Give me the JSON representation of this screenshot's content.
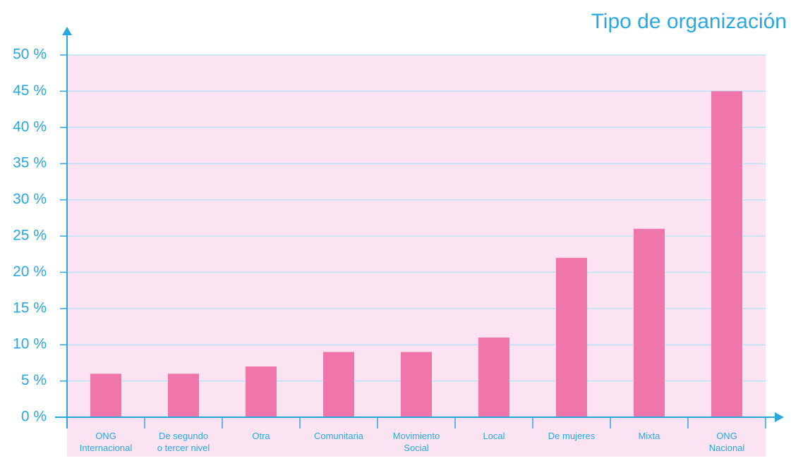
{
  "chart_data": {
    "type": "bar",
    "title": "Tipo de organización",
    "categories": [
      "ONG\nInternacional",
      "De segundo\no tercer nivel",
      "Otra",
      "Comunitaria",
      "Movimiento\nSocial",
      "Local",
      "De mujeres",
      "Mixta",
      "ONG\nNacional"
    ],
    "values": [
      6,
      6,
      7,
      9,
      9,
      11,
      22,
      26,
      45
    ],
    "color": "#f075aa",
    "ylim": [
      0,
      50
    ],
    "yticks": [
      {
        "value": 0,
        "label": "0 %"
      },
      {
        "value": 5,
        "label": "5 %"
      },
      {
        "value": 10,
        "label": "10 %"
      },
      {
        "value": 15,
        "label": "15 %"
      },
      {
        "value": 20,
        "label": "20 %"
      },
      {
        "value": 25,
        "label": "25 %"
      },
      {
        "value": 30,
        "label": "30 %"
      },
      {
        "value": 35,
        "label": "35 %"
      },
      {
        "value": 40,
        "label": "40 %"
      },
      {
        "value": 45,
        "label": "45 %"
      },
      {
        "value": 50,
        "label": "50 %"
      }
    ],
    "grid": true
  }
}
